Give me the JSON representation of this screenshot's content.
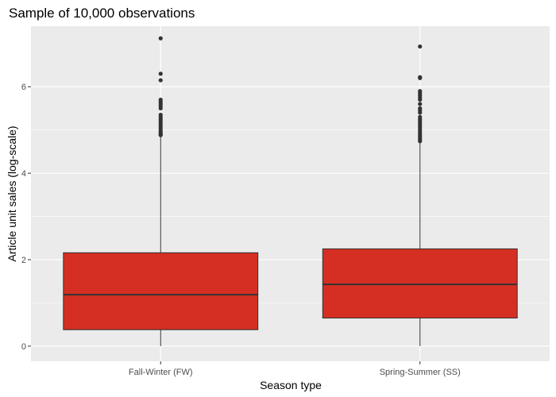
{
  "chart_data": {
    "type": "boxplot",
    "title": "Sample of 10,000 observations",
    "xlabel": "Season type",
    "ylabel": "Article unit sales (log-scale)",
    "ylim": [
      -0.35,
      7.4
    ],
    "yticks": [
      0,
      2,
      4,
      6
    ],
    "categories": [
      "Fall-Winter (FW)",
      "Spring-Summer (SS)"
    ],
    "boxes": [
      {
        "name": "Fall-Winter (FW)",
        "min": 0.0,
        "q1": 0.38,
        "median": 1.19,
        "q3": 2.16,
        "max": 4.86,
        "outliers": [
          4.88,
          4.9,
          4.93,
          4.96,
          5.0,
          5.05,
          5.1,
          5.15,
          5.2,
          5.25,
          5.3,
          5.35,
          5.5,
          5.55,
          5.6,
          5.65,
          5.7,
          6.15,
          6.3,
          7.12
        ]
      },
      {
        "name": "Spring-Summer (SS)",
        "min": 0.0,
        "q1": 0.65,
        "median": 1.43,
        "q3": 2.25,
        "max": 4.72,
        "outliers": [
          4.74,
          4.78,
          4.82,
          4.86,
          4.9,
          4.95,
          5.0,
          5.05,
          5.1,
          5.15,
          5.2,
          5.25,
          5.3,
          5.4,
          5.45,
          5.5,
          5.6,
          5.7,
          5.75,
          5.8,
          5.85,
          5.9,
          6.2,
          6.22,
          6.93
        ]
      }
    ],
    "colors": {
      "box_fill": "#d52e22",
      "box_line": "#333333",
      "panel_bg": "#ebebeb",
      "grid": "#ffffff",
      "outlier": "#333333"
    },
    "grid": true,
    "legend": "none"
  }
}
